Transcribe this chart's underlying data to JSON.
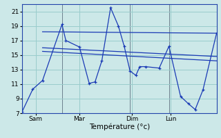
{
  "background_color": "#cce8e8",
  "grid_color": "#99cccc",
  "line_color": "#1a3ab5",
  "xlabel": "Température (°c)",
  "ylim": [
    7,
    22
  ],
  "xlim": [
    0,
    1
  ],
  "yticks": [
    7,
    9,
    11,
    13,
    15,
    17,
    19,
    21
  ],
  "xlabel_fontsize": 7.5,
  "tick_fontsize": 6.5,
  "day_labels": [
    "Sam",
    "Mar",
    "Dim",
    "Lun"
  ],
  "day_positions": [
    0.07,
    0.295,
    0.565,
    0.765
  ],
  "vline_positions": [
    0.205,
    0.555,
    0.755
  ],
  "series": [
    {
      "x": [
        0.0,
        0.055,
        0.105,
        0.205,
        0.225,
        0.295,
        0.345,
        0.375,
        0.41,
        0.455,
        0.495,
        0.525,
        0.555,
        0.585,
        0.605,
        0.635,
        0.705,
        0.755,
        0.815,
        0.855,
        0.89,
        0.93,
        1.0
      ],
      "y": [
        7.2,
        10.3,
        11.5,
        19.2,
        17.0,
        16.1,
        11.1,
        11.3,
        14.2,
        21.5,
        19.0,
        16.2,
        12.8,
        12.2,
        13.4,
        13.4,
        13.2,
        16.2,
        9.3,
        8.3,
        7.5,
        10.2,
        18.0
      ],
      "marker": "+"
    },
    {
      "x": [
        0.105,
        1.0
      ],
      "y": [
        18.2,
        18.0
      ],
      "marker": null
    },
    {
      "x": [
        0.105,
        1.0
      ],
      "y": [
        16.0,
        14.8
      ],
      "marker": null
    },
    {
      "x": [
        0.105,
        1.0
      ],
      "y": [
        15.5,
        14.2
      ],
      "marker": null
    }
  ]
}
